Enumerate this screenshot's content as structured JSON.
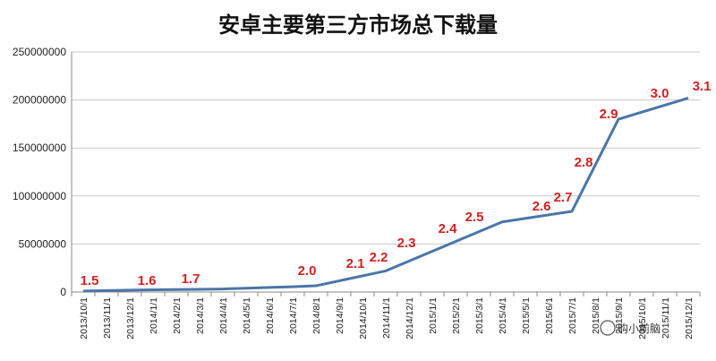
{
  "chart_data": {
    "type": "line",
    "title": "安卓主要第三方市场总下载量",
    "xlabel": "",
    "ylabel": "",
    "ylim": [
      0,
      250000000
    ],
    "yticks": [
      "0",
      "50000000",
      "100000000",
      "150000000",
      "200000000",
      "250000000"
    ],
    "grid": true,
    "legend": "none",
    "color": "#4a76a8",
    "label_color": "#d62020",
    "categories": [
      "2013/10/1",
      "2013/11/1",
      "2013/12/1",
      "2014/1/1",
      "2014/2/1",
      "2014/3/1",
      "2014/4/1",
      "2014/5/1",
      "2014/6/1",
      "2014/7/1",
      "2014/8/1",
      "2014/9/1",
      "2014/10/1",
      "2014/11/1",
      "2014/12/1",
      "2015/1/1",
      "2015/2/1",
      "2015/3/1",
      "2015/4/1",
      "2015/5/1",
      "2015/6/1",
      "2015/7/1",
      "2015/8/1",
      "2015/9/1",
      "2015/10/1",
      "2015/11/1",
      "2015/12/1"
    ],
    "values": [
      1000000,
      1500000,
      2000000,
      2300000,
      2600000,
      2800000,
      3200000,
      4000000,
      4800000,
      5500000,
      6500000,
      null,
      null,
      22000000,
      null,
      null,
      null,
      null,
      73000000,
      null,
      null,
      84000000,
      null,
      180000000,
      null,
      null,
      202000000
    ],
    "annotations": [
      {
        "text": "1.5",
        "index": 0
      },
      {
        "text": "1.6",
        "index": 3
      },
      {
        "text": "1.7",
        "index": 5
      },
      {
        "text": "2.0",
        "index": 10
      },
      {
        "text": "2.1",
        "index": 12
      },
      {
        "text": "2.2",
        "index": 13
      },
      {
        "text": "2.3",
        "index": 14
      },
      {
        "text": "2.4",
        "index": 16
      },
      {
        "text": "2.5",
        "index": 17
      },
      {
        "text": "2.6",
        "index": 20
      },
      {
        "text": "2.7",
        "index": 21
      },
      {
        "text": "2.8",
        "index": 22
      },
      {
        "text": "2.9",
        "index": 23
      },
      {
        "text": "3.0",
        "index": 25
      },
      {
        "text": "3.1",
        "index": 26
      }
    ]
  },
  "watermark": "购小前脑"
}
